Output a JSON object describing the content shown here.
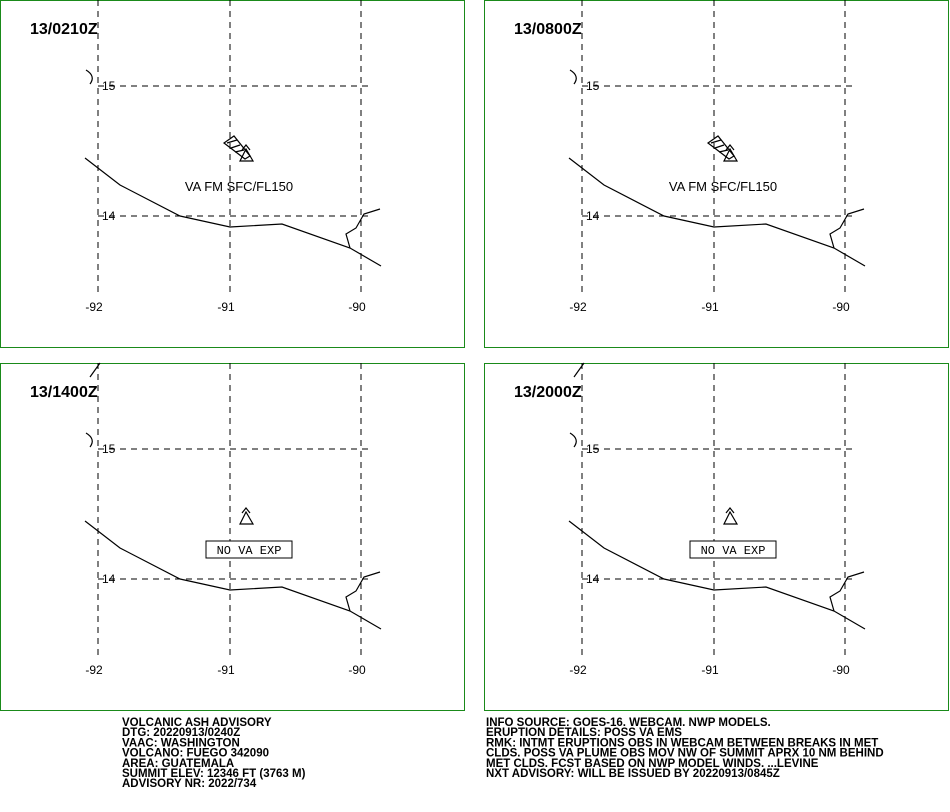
{
  "panels": [
    {
      "time": "13/0210Z",
      "label": "VA FM SFC/FL150",
      "boxed": false,
      "ash": true
    },
    {
      "time": "13/0800Z",
      "label": "VA FM SFC/FL150",
      "boxed": false,
      "ash": true
    },
    {
      "time": "13/1400Z",
      "label": "NO VA EXP",
      "boxed": true,
      "ash": false
    },
    {
      "time": "13/2000Z",
      "label": "NO VA EXP",
      "boxed": true,
      "ash": false
    }
  ],
  "grid": {
    "lats": [
      "15",
      "14"
    ],
    "lons": [
      "-92",
      "-91",
      "-90"
    ]
  },
  "text_left": [
    "VOLCANIC ASH ADVISORY",
    "DTG: 20220913/0240Z",
    "VAAC: WASHINGTON",
    "VOLCANO: FUEGO 342090",
    "AREA: GUATEMALA",
    "SUMMIT ELEV: 12346 FT (3763 M)",
    "ADVISORY NR: 2022/734"
  ],
  "text_right": [
    "INFO SOURCE: GOES-16. WEBCAM. NWP MODELS.",
    "ERUPTION DETAILS: POSS VA EMS",
    "RMK: INTMT ERUPTIONS OBS IN WEBCAM BETWEEN BREAKS IN MET",
    "CLDS. POSS VA PLUME OBS MOV NW OF SUMMIT APRX 10 NM BEHIND",
    "MET CLDS. FCST BASED ON NWP MODEL WINDS. ...LEVINE",
    "NXT ADVISORY: WILL BE ISSUED BY 20220913/0845Z"
  ]
}
